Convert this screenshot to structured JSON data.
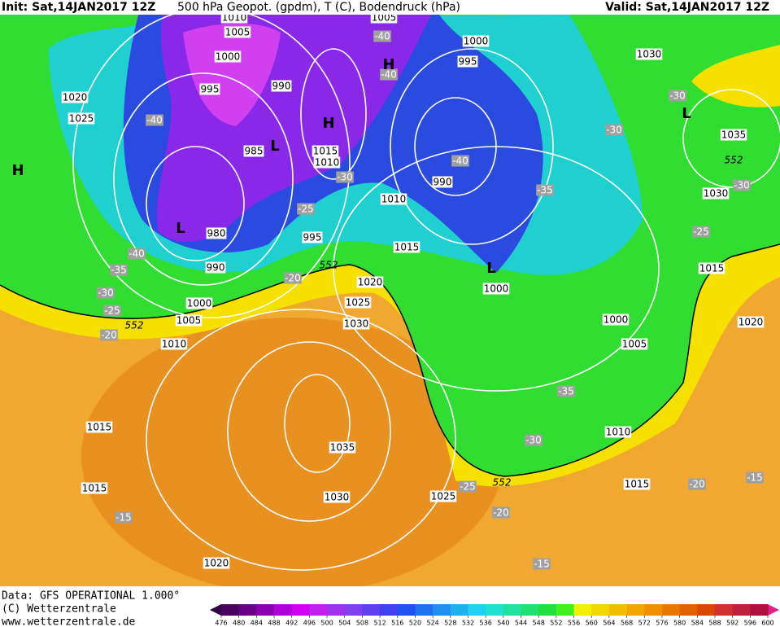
{
  "header": {
    "init": "Init: Sat,14JAN2017 12Z",
    "title": "500 hPa Geopot. (gpdm), T (C), Bodendruck (hPa)",
    "valid": "Valid: Sat,14JAN2017 12Z"
  },
  "map": {
    "labels": [
      "1010",
      "1005",
      "1000",
      "995",
      "990",
      "985",
      "980",
      "990",
      "995",
      "1000",
      "1005",
      "1010",
      "1020",
      "1025",
      "1015",
      "1015",
      "1020",
      "1035",
      "1030",
      "1030",
      "1025",
      "1020",
      "1015",
      "1010",
      "1015",
      "1010",
      "1005",
      "1000",
      "995",
      "990",
      "1000",
      "1000",
      "1005",
      "1010",
      "1015",
      "1025",
      "1030",
      "1035",
      "1030",
      "1015",
      "1020",
      "-40",
      "-40",
      "-40",
      "-40",
      "-40",
      "-35",
      "-30",
      "-25",
      "-20",
      "-30",
      "-25",
      "-20",
      "-30",
      "-30",
      "-35",
      "-30",
      "-25",
      "-35",
      "-30",
      "-25",
      "-20",
      "-20",
      "-15",
      "-15",
      "-15",
      "H",
      "H",
      "H",
      "L",
      "L",
      "L",
      "L",
      "552",
      "552",
      "552",
      "552"
    ]
  },
  "footer": {
    "data": "Data: GFS OPERATIONAL 1.000°",
    "copyright": "(C) Wetterzentrale",
    "url": "www.wetterzentrale.de"
  },
  "colorbar": {
    "ticks": [
      476,
      480,
      484,
      488,
      492,
      496,
      500,
      504,
      508,
      512,
      516,
      520,
      524,
      528,
      532,
      536,
      540,
      544,
      548,
      552,
      556,
      560,
      564,
      568,
      572,
      576,
      580,
      584,
      588,
      592,
      596,
      600
    ],
    "colors": [
      "#4b0060",
      "#6a0088",
      "#8a00b0",
      "#b000d8",
      "#d000f0",
      "#c020f0",
      "#a030f0",
      "#8040f0",
      "#6040f0",
      "#4040f0",
      "#2050f0",
      "#2070f0",
      "#2090f0",
      "#20b0f0",
      "#20d0f0",
      "#20e0d0",
      "#20e0a0",
      "#20e070",
      "#20e040",
      "#40f020",
      "#f0f000",
      "#f0d800",
      "#f0c000",
      "#f0a800",
      "#f09000",
      "#e87800",
      "#e06000",
      "#d84800",
      "#d03030",
      "#c02040",
      "#b01040"
    ]
  }
}
